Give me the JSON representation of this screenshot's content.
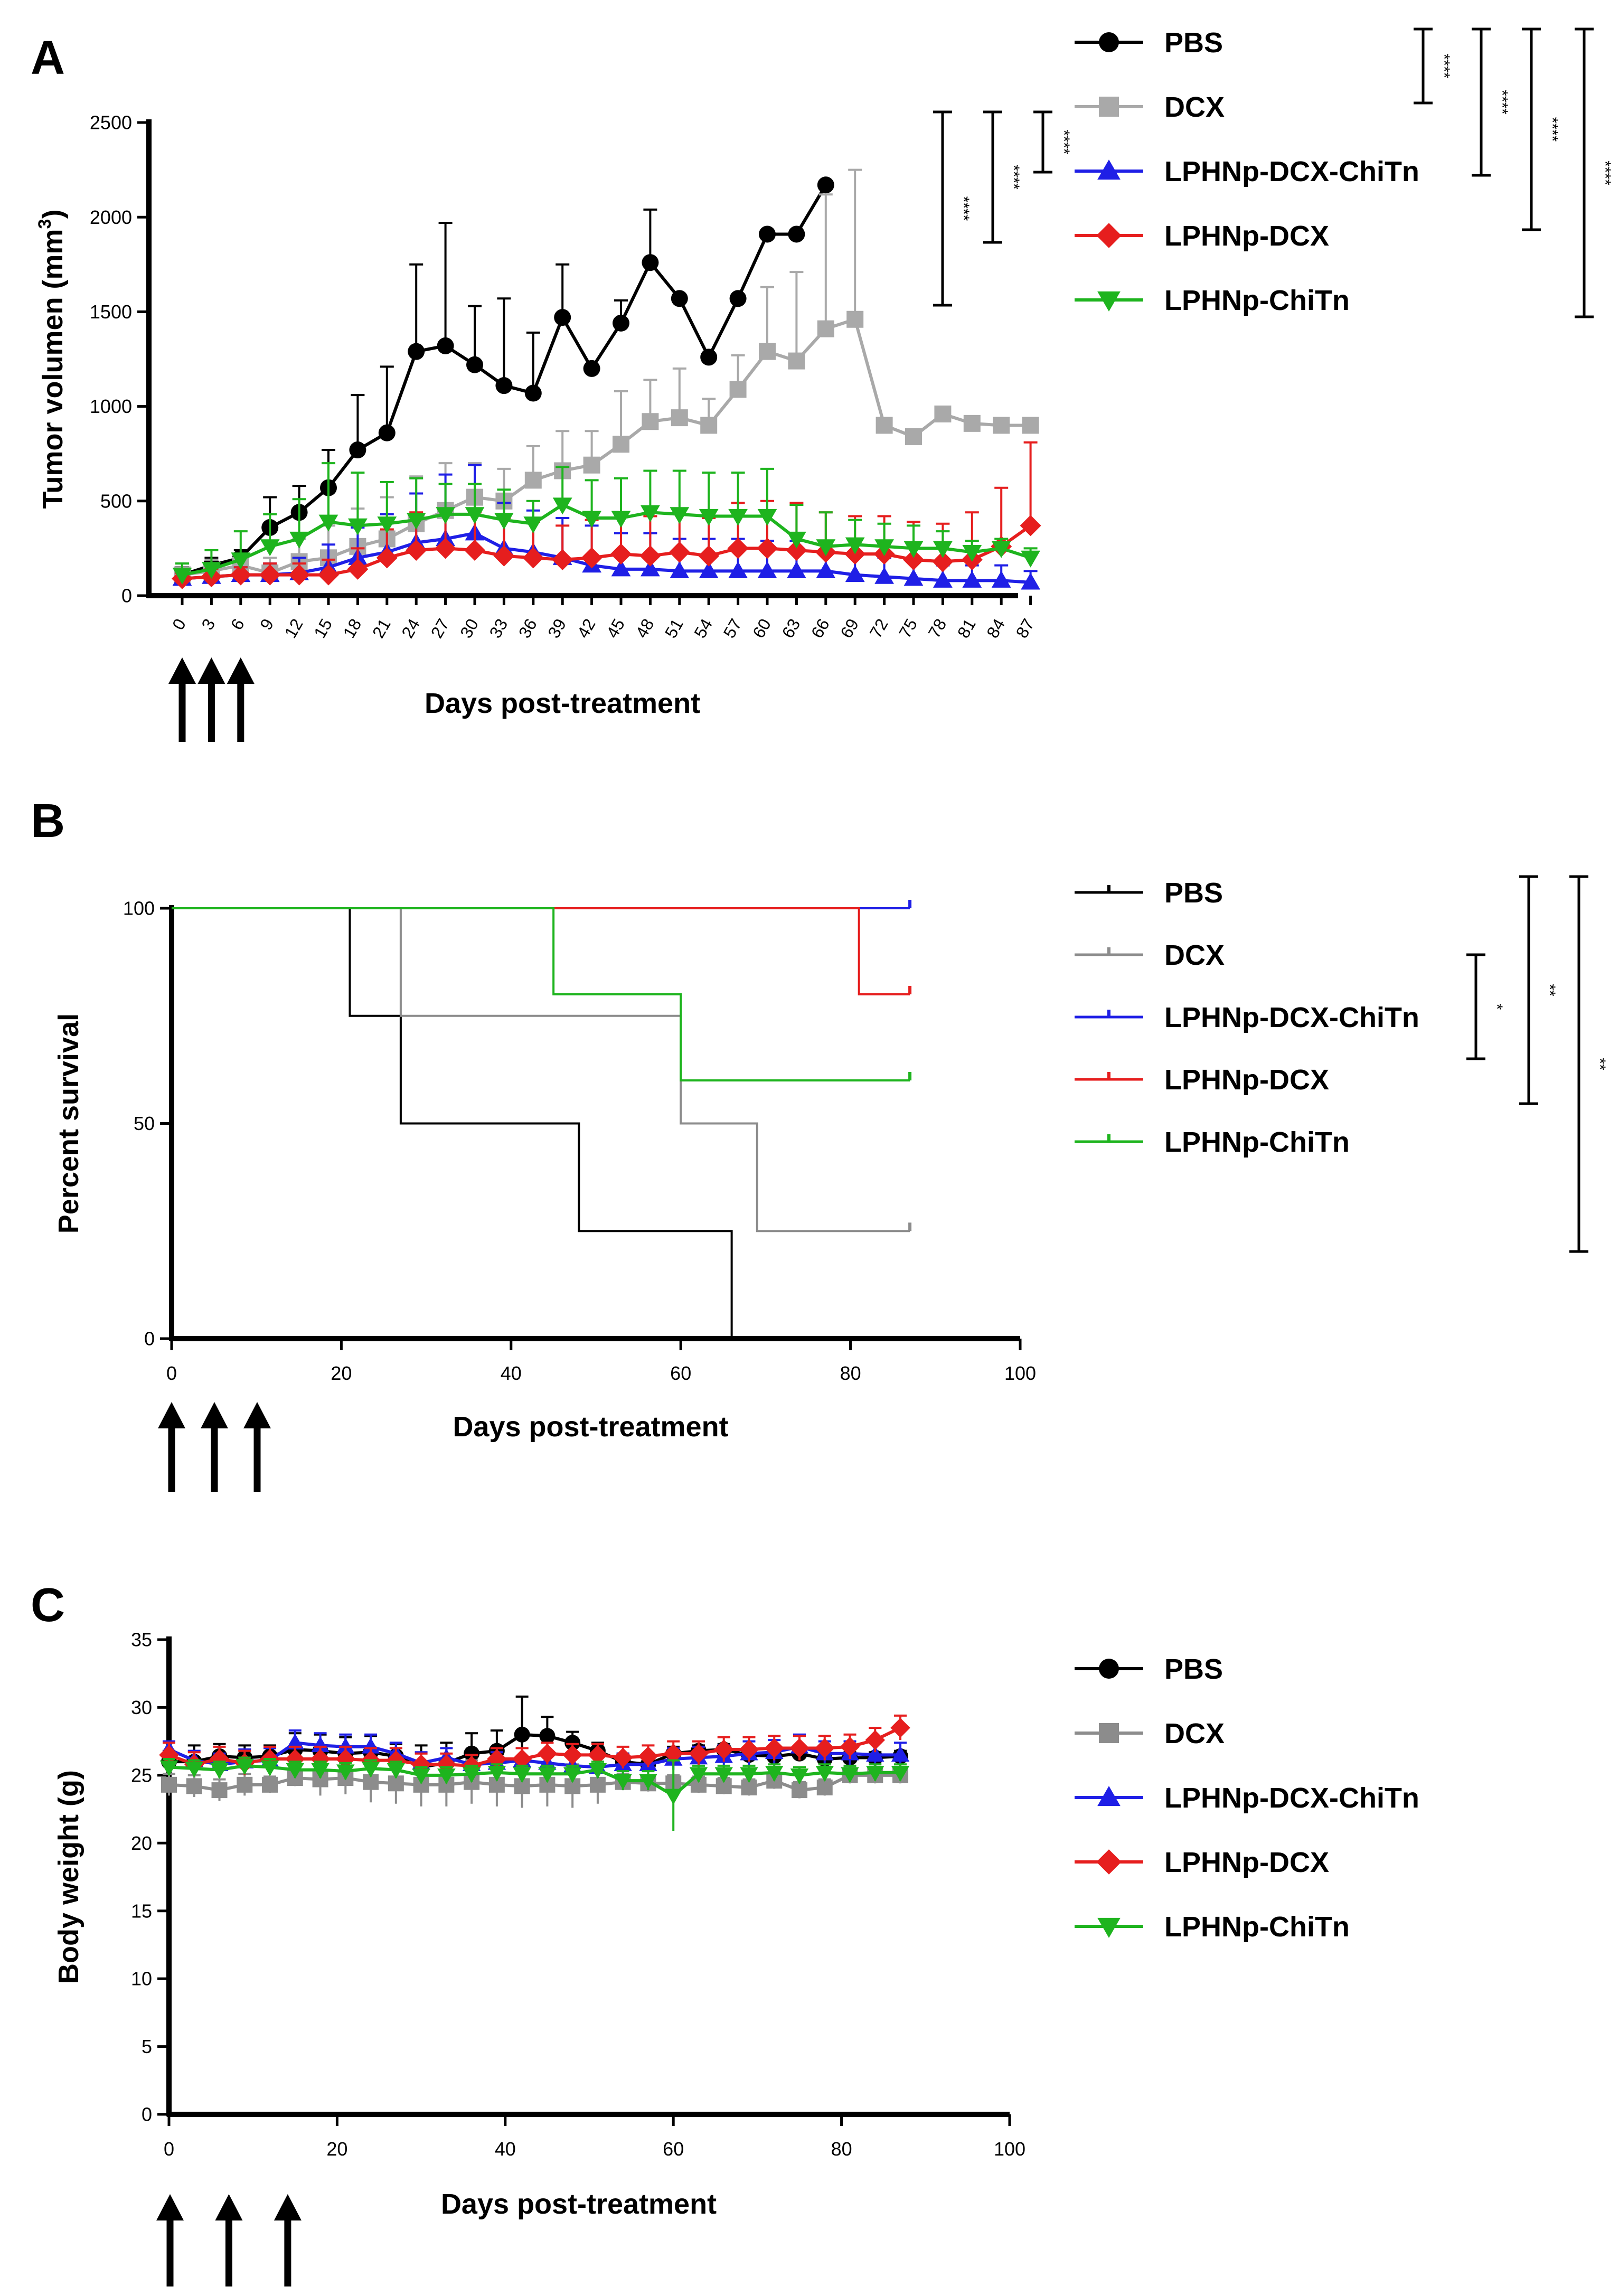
{
  "chart_data": [
    {
      "panel": "A",
      "type": "line",
      "ylabel_main": "Tumor volumen (mm",
      "ylabel_sup": "3",
      "ylabel_end": ")",
      "xlabel": "Days post-treatment",
      "ylim": [
        0,
        2500
      ],
      "yticks": [
        0,
        500,
        1000,
        1500,
        2000,
        2500
      ],
      "categories": [
        "0",
        "3",
        "6",
        "9",
        "12",
        "15",
        "18",
        "21",
        "24",
        "27",
        "30",
        "33",
        "36",
        "39",
        "42",
        "45",
        "48",
        "51",
        "54",
        "57",
        "60",
        "63",
        "66",
        "69",
        "72",
        "75",
        "78",
        "81",
        "84",
        "87"
      ],
      "treatment_days": [
        0,
        3,
        6
      ],
      "series": [
        {
          "name": "PBS",
          "color": "#000000",
          "marker": "circle",
          "values": [
            110,
            160,
            200,
            360,
            440,
            570,
            770,
            860,
            1290,
            1320,
            1220,
            1110,
            1070,
            1470,
            1200,
            1440,
            1760,
            1570,
            1260,
            1570,
            1910,
            1910,
            2170,
            null,
            null,
            null,
            null,
            null,
            null,
            null
          ],
          "errors": [
            40,
            40,
            40,
            160,
            140,
            200,
            290,
            350,
            460,
            650,
            310,
            460,
            320,
            280,
            20,
            120,
            280,
            0,
            0,
            0,
            0,
            0,
            0,
            null,
            null,
            null,
            null,
            null,
            null,
            null
          ]
        },
        {
          "name": "DCX",
          "color": "#a9a9a9",
          "marker": "square",
          "values": [
            110,
            130,
            160,
            120,
            180,
            200,
            260,
            300,
            380,
            450,
            520,
            500,
            610,
            660,
            690,
            800,
            920,
            940,
            900,
            1090,
            1290,
            1240,
            1410,
            1460,
            900,
            840,
            960,
            910,
            900,
            900
          ],
          "errors": [
            60,
            60,
            60,
            80,
            120,
            170,
            200,
            220,
            250,
            250,
            180,
            170,
            180,
            210,
            180,
            280,
            220,
            260,
            140,
            180,
            340,
            470,
            710,
            790,
            0,
            0,
            0,
            0,
            0,
            0
          ]
        },
        {
          "name": "LPHNp-DCX-ChiTn",
          "color": "#1f1fe6",
          "marker": "triangle",
          "values": [
            90,
            100,
            110,
            110,
            120,
            150,
            200,
            230,
            280,
            300,
            330,
            250,
            230,
            200,
            160,
            140,
            140,
            130,
            130,
            130,
            130,
            130,
            130,
            110,
            100,
            90,
            80,
            80,
            80,
            70
          ],
          "errors": [
            30,
            40,
            40,
            60,
            80,
            120,
            160,
            200,
            260,
            340,
            360,
            240,
            220,
            210,
            210,
            190,
            190,
            170,
            170,
            170,
            160,
            160,
            150,
            120,
            100,
            90,
            80,
            80,
            80,
            60
          ]
        },
        {
          "name": "LPHNp-DCX",
          "color": "#e61e1e",
          "marker": "diamond",
          "values": [
            90,
            100,
            110,
            110,
            110,
            110,
            140,
            200,
            240,
            250,
            240,
            210,
            200,
            190,
            200,
            220,
            210,
            230,
            210,
            250,
            250,
            240,
            230,
            220,
            220,
            190,
            180,
            190,
            260,
            370
          ],
          "errors": [
            30,
            40,
            40,
            60,
            60,
            80,
            110,
            150,
            200,
            210,
            200,
            200,
            190,
            180,
            200,
            220,
            210,
            230,
            200,
            240,
            250,
            250,
            210,
            200,
            200,
            200,
            200,
            250,
            310,
            440
          ]
        },
        {
          "name": "LPHNp-ChiTn",
          "color": "#1eb41e",
          "marker": "triangle-down",
          "values": [
            110,
            140,
            190,
            260,
            300,
            390,
            370,
            380,
            400,
            430,
            430,
            400,
            380,
            480,
            410,
            410,
            440,
            430,
            420,
            420,
            420,
            300,
            260,
            270,
            260,
            250,
            250,
            230,
            250,
            200
          ],
          "errors": [
            60,
            100,
            150,
            170,
            210,
            310,
            280,
            220,
            220,
            160,
            160,
            160,
            120,
            200,
            200,
            210,
            220,
            230,
            230,
            230,
            250,
            180,
            180,
            130,
            120,
            120,
            90,
            60,
            50,
            50
          ]
        }
      ],
      "significance": [
        {
          "label": "****",
          "between": [
            "DCX",
            "LPHNp-DCX-ChiTn"
          ]
        },
        {
          "label": "****",
          "between": [
            "DCX",
            "LPHNp-DCX"
          ]
        },
        {
          "label": "****",
          "between": [
            "DCX",
            "LPHNp-ChiTn"
          ]
        },
        {
          "label": "****",
          "between": [
            "PBS",
            "DCX"
          ]
        },
        {
          "label": "****",
          "between": [
            "PBS",
            "LPHNp-DCX-ChiTn"
          ]
        },
        {
          "label": "****",
          "between": [
            "PBS",
            "LPHNp-DCX"
          ]
        },
        {
          "label": "****",
          "between": [
            "PBS",
            "LPHNp-ChiTn"
          ]
        }
      ]
    },
    {
      "panel": "B",
      "type": "line",
      "subtype": "survival-step",
      "ylabel": "Percent survival",
      "xlabel": "Days post-treatment",
      "xlim": [
        0,
        100
      ],
      "ylim": [
        0,
        100
      ],
      "xticks": [
        0,
        20,
        40,
        60,
        80,
        100
      ],
      "yticks": [
        0,
        50,
        100
      ],
      "treatment_days": [
        0,
        3,
        6
      ],
      "series": [
        {
          "name": "PBS",
          "color": "#000000",
          "steps": [
            [
              0,
              100
            ],
            [
              21,
              75
            ],
            [
              27,
              50
            ],
            [
              48,
              25
            ],
            [
              66,
              0
            ]
          ],
          "end": 66
        },
        {
          "name": "DCX",
          "color": "#8c8c8c",
          "steps": [
            [
              0,
              100
            ],
            [
              27,
              75
            ],
            [
              60,
              50
            ],
            [
              69,
              25
            ]
          ],
          "end": 87
        },
        {
          "name": "LPHNp-DCX-ChiTn",
          "color": "#1f1fe6",
          "steps": [
            [
              0,
              100
            ]
          ],
          "end": 87
        },
        {
          "name": "LPHNp-DCX",
          "color": "#e61e1e",
          "steps": [
            [
              0,
              100
            ],
            [
              81,
              80
            ]
          ],
          "end": 87
        },
        {
          "name": "LPHNp-ChiTn",
          "color": "#1eb41e",
          "steps": [
            [
              0,
              100
            ],
            [
              45,
              80
            ],
            [
              60,
              60
            ]
          ],
          "end": 87
        }
      ],
      "significance": [
        {
          "label": "*",
          "between": [
            "DCX",
            "LPHNp-DCX-ChiTn"
          ]
        },
        {
          "label": "**",
          "between": [
            "PBS",
            "LPHNp-DCX"
          ]
        },
        {
          "label": "**",
          "between": [
            "PBS",
            "LPHNp-ChiTn"
          ]
        }
      ]
    },
    {
      "panel": "C",
      "type": "line",
      "ylabel": "Body weight (g)",
      "xlabel": "Days post-treatment",
      "xlim": [
        0,
        100
      ],
      "ylim": [
        0,
        35
      ],
      "xticks": [
        0,
        20,
        40,
        60,
        80,
        100
      ],
      "yticks": [
        0,
        5,
        10,
        15,
        20,
        25,
        30,
        35
      ],
      "treatment_days": [
        0,
        3,
        6
      ],
      "x": [
        0,
        3,
        6,
        9,
        12,
        15,
        18,
        21,
        24,
        27,
        30,
        33,
        36,
        39,
        42,
        45,
        48,
        51,
        54,
        57,
        60,
        63,
        66,
        69,
        72,
        75,
        78,
        81,
        84,
        87
      ],
      "series": [
        {
          "name": "PBS",
          "color": "#000000",
          "marker": "circle",
          "values": [
            26,
            26,
            26.4,
            26.3,
            26.4,
            26.9,
            26.8,
            26.6,
            26.7,
            26.4,
            25.6,
            25.9,
            26.6,
            26.8,
            28,
            27.9,
            27.4,
            26.8,
            26,
            25.8,
            26.6,
            26.8,
            26.9,
            26.5,
            26.4,
            26.6,
            26.2,
            26.3,
            26.3,
            26.4
          ],
          "errors": [
            0.8,
            1.2,
            0.9,
            0.9,
            0.8,
            1.2,
            1.2,
            1.2,
            1.2,
            0.9,
            1.6,
            1.5,
            1.5,
            1.5,
            2.8,
            1.4,
            0.8,
            0.6,
            0.6,
            0.6,
            0.5,
            0.4,
            0.4,
            0.4,
            0.4,
            0.4,
            0.4,
            0.4,
            0.4,
            0.4
          ]
        },
        {
          "name": "DCX",
          "color": "#8c8c8c",
          "marker": "square",
          "values": [
            24.3,
            24.2,
            23.9,
            24.3,
            24.3,
            24.8,
            24.7,
            24.8,
            24.5,
            24.4,
            24.3,
            24.3,
            24.5,
            24.3,
            24.2,
            24.3,
            24.2,
            24.3,
            24.5,
            24.4,
            24.4,
            24.3,
            24.2,
            24.1,
            24.6,
            23.9,
            24.1,
            25,
            25,
            25
          ],
          "errors": [
            0.8,
            0.8,
            0.8,
            0.8,
            0.6,
            0.6,
            1.2,
            1.2,
            1.5,
            1.5,
            1.6,
            1.6,
            1.6,
            1.6,
            1.6,
            1.6,
            1.6,
            1.4,
            0.6,
            0.6,
            0.6,
            0.6,
            0.6,
            0.6,
            0.6,
            0.6,
            0.6,
            0.6,
            0.6,
            0.6
          ]
        },
        {
          "name": "LPHNp-DCX-ChiTn",
          "color": "#1f1fe6",
          "marker": "triangle",
          "values": [
            26.9,
            26.1,
            25.8,
            26,
            26.1,
            27.4,
            27.2,
            27.1,
            27.1,
            26.6,
            25.9,
            26.3,
            25.8,
            25.9,
            26.1,
            25.9,
            25.7,
            25.6,
            25.8,
            25.8,
            26.2,
            26.3,
            26.4,
            26.6,
            26.7,
            27.1,
            26.6,
            26.6,
            26.5,
            26.5
          ],
          "errors": [
            0.6,
            0.7,
            0.8,
            0.9,
            0.9,
            0.9,
            0.9,
            0.9,
            0.9,
            0.8,
            0.8,
            0.7,
            0.7,
            0.8,
            0.9,
            0.8,
            0.7,
            0.8,
            0.8,
            0.8,
            0.8,
            0.8,
            0.8,
            0.9,
            0.9,
            0.9,
            0.9,
            0.9,
            0.9,
            0.9
          ]
        },
        {
          "name": "LPHNp-DCX",
          "color": "#e61e1e",
          "marker": "diamond",
          "values": [
            26.5,
            25.8,
            26.2,
            25.9,
            26.2,
            26.2,
            26.2,
            26.2,
            26.1,
            26.1,
            25.8,
            25.8,
            25.7,
            26.2,
            26.2,
            26.6,
            26.5,
            26.5,
            26.3,
            26.4,
            26.6,
            26.6,
            26.9,
            26.9,
            27,
            27,
            27,
            27.1,
            27.6,
            28.5
          ],
          "errors": [
            0.9,
            0.9,
            0.9,
            0.9,
            0.9,
            0.9,
            0.9,
            0.9,
            0.9,
            0.9,
            0.8,
            0.8,
            0.8,
            0.8,
            0.8,
            0.8,
            0.8,
            0.8,
            0.8,
            0.8,
            0.9,
            0.9,
            0.9,
            0.9,
            0.9,
            0.9,
            0.9,
            0.9,
            0.9,
            0.9
          ]
        },
        {
          "name": "LPHNp-ChiTn",
          "color": "#1eb41e",
          "marker": "triangle-down",
          "values": [
            25.6,
            25.5,
            25.4,
            25.7,
            25.6,
            25.4,
            25.4,
            25.3,
            25.5,
            25.4,
            25,
            25,
            25.1,
            25.2,
            25.1,
            25.1,
            25.1,
            25.4,
            24.6,
            24.6,
            23.5,
            25.1,
            25.1,
            25.1,
            25.2,
            25,
            25.2,
            25.1,
            25.2,
            25.2
          ],
          "errors": [
            0.6,
            0.6,
            0.6,
            0.6,
            0.6,
            0.6,
            0.6,
            0.6,
            0.6,
            0.6,
            0.6,
            0.6,
            0.6,
            0.6,
            0.6,
            0.6,
            0.6,
            0.6,
            0.7,
            0.7,
            2.6,
            0.6,
            0.6,
            0.6,
            0.6,
            0.6,
            0.6,
            0.6,
            0.6,
            0.6
          ]
        }
      ]
    }
  ]
}
